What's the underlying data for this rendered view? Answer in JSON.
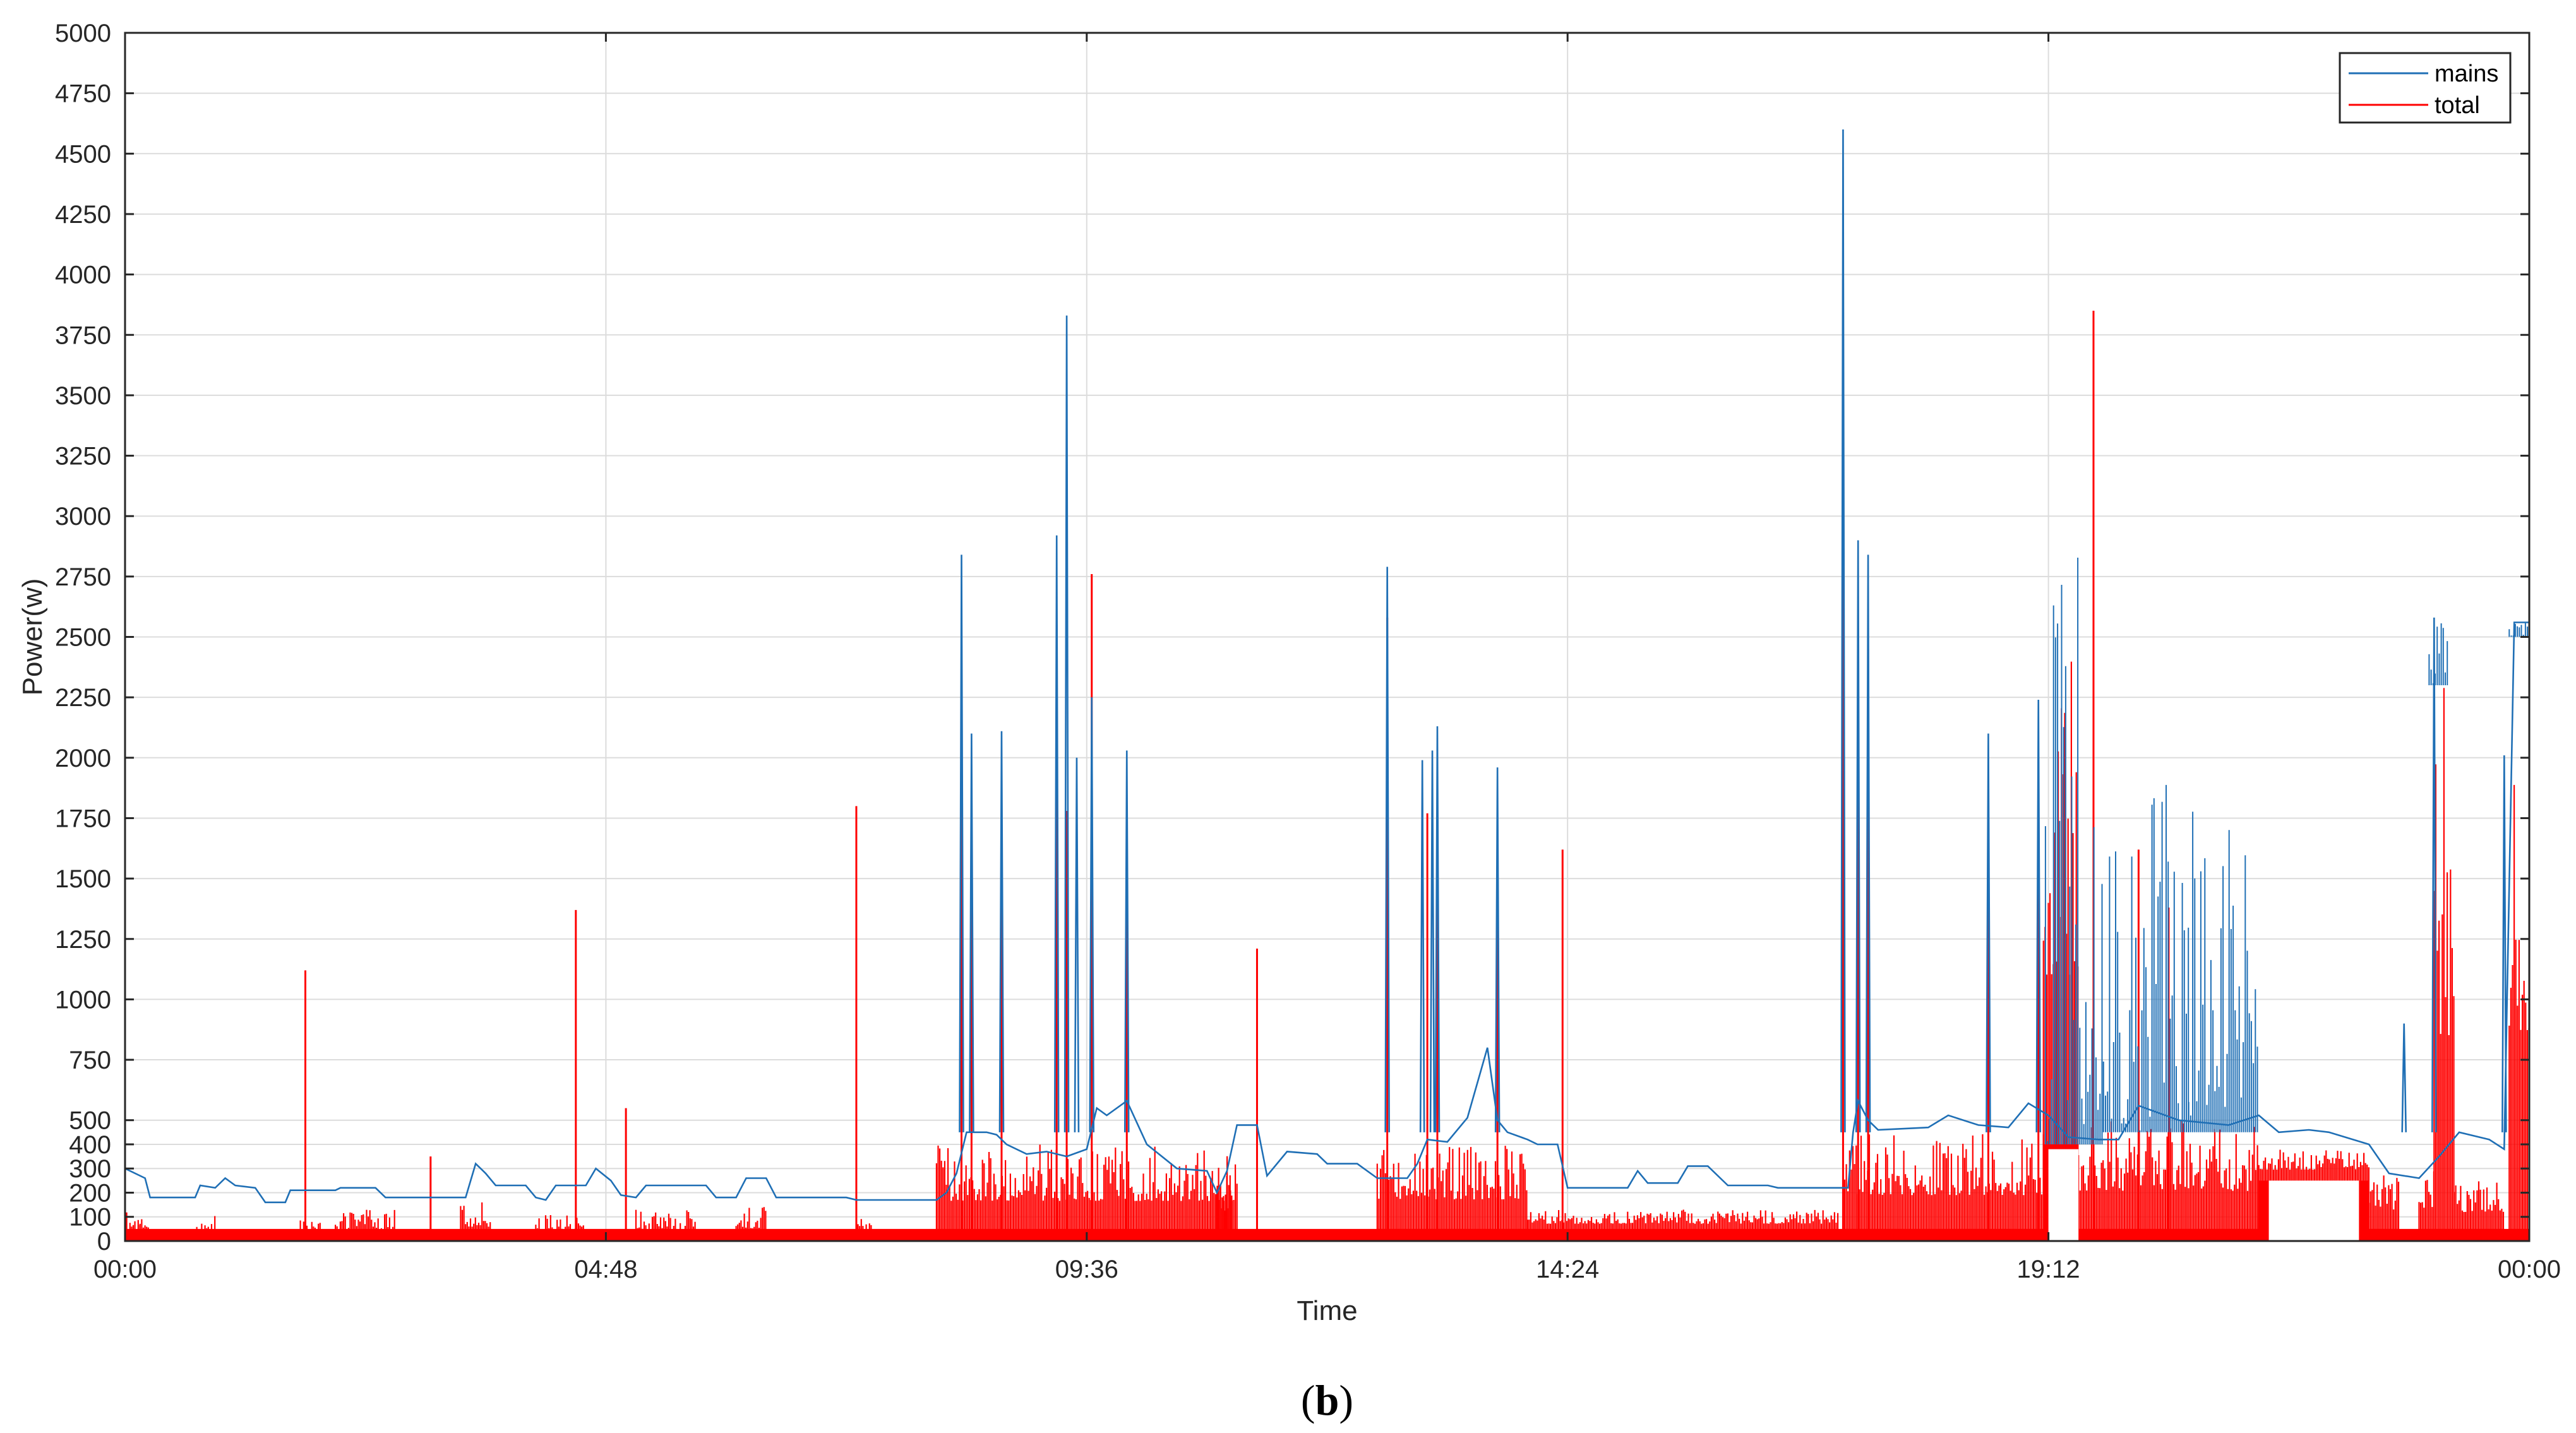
{
  "chart_data": {
    "type": "line",
    "xlabel": "Time",
    "ylabel": "Power(w)",
    "caption": {
      "open": "(",
      "letter": "b",
      "close": ")"
    },
    "x_tick_labels": [
      "00:00",
      "04:48",
      "09:36",
      "14:24",
      "19:12",
      "00:00"
    ],
    "x_tick_hours": [
      0,
      4.8,
      9.6,
      14.4,
      19.2,
      24
    ],
    "xlim_hours": [
      0,
      24
    ],
    "y_ticks": [
      0,
      100,
      200,
      300,
      400,
      500,
      750,
      1000,
      1250,
      1500,
      1750,
      2000,
      2250,
      2500,
      2750,
      3000,
      3250,
      3500,
      3750,
      4000,
      4250,
      4500,
      4750,
      5000
    ],
    "ylim": [
      0,
      5000
    ],
    "grid": true,
    "legend_position": "top-right",
    "colors": {
      "mains": "#1f6fb5",
      "total": "#ff0000",
      "grid": "#dcdcdc",
      "axis": "#262626"
    },
    "series": [
      {
        "name": "mains",
        "color": "#1f6fb5",
        "baseline": [
          [
            0.0,
            300
          ],
          [
            0.2,
            260
          ],
          [
            0.25,
            180
          ],
          [
            0.7,
            180
          ],
          [
            0.75,
            230
          ],
          [
            0.9,
            220
          ],
          [
            1.0,
            260
          ],
          [
            1.1,
            230
          ],
          [
            1.3,
            220
          ],
          [
            1.4,
            160
          ],
          [
            1.6,
            160
          ],
          [
            1.65,
            210
          ],
          [
            2.1,
            210
          ],
          [
            2.15,
            220
          ],
          [
            2.5,
            220
          ],
          [
            2.6,
            180
          ],
          [
            3.4,
            180
          ],
          [
            3.5,
            320
          ],
          [
            3.6,
            280
          ],
          [
            3.7,
            230
          ],
          [
            4.0,
            230
          ],
          [
            4.1,
            180
          ],
          [
            4.2,
            170
          ],
          [
            4.3,
            230
          ],
          [
            4.6,
            230
          ],
          [
            4.7,
            300
          ],
          [
            4.85,
            250
          ],
          [
            4.95,
            190
          ],
          [
            5.1,
            180
          ],
          [
            5.2,
            230
          ],
          [
            5.8,
            230
          ],
          [
            5.9,
            180
          ],
          [
            6.1,
            180
          ],
          [
            6.2,
            260
          ],
          [
            6.4,
            260
          ],
          [
            6.5,
            180
          ],
          [
            7.2,
            180
          ],
          [
            7.3,
            170
          ],
          [
            7.6,
            170
          ],
          [
            8.1,
            170
          ],
          [
            8.2,
            200
          ],
          [
            8.3,
            280
          ],
          [
            8.4,
            450
          ],
          [
            8.6,
            450
          ],
          [
            8.7,
            440
          ],
          [
            8.8,
            400
          ],
          [
            9.0,
            360
          ],
          [
            9.2,
            370
          ],
          [
            9.4,
            350
          ],
          [
            9.6,
            380
          ],
          [
            9.7,
            550
          ],
          [
            9.8,
            520
          ],
          [
            10.0,
            580
          ],
          [
            10.2,
            400
          ],
          [
            10.5,
            300
          ],
          [
            10.8,
            290
          ],
          [
            10.9,
            200
          ],
          [
            11.0,
            290
          ],
          [
            11.1,
            480
          ],
          [
            11.3,
            480
          ],
          [
            11.4,
            270
          ],
          [
            11.6,
            370
          ],
          [
            11.9,
            360
          ],
          [
            12.0,
            320
          ],
          [
            12.3,
            320
          ],
          [
            12.5,
            260
          ],
          [
            12.8,
            260
          ],
          [
            12.9,
            320
          ],
          [
            13.0,
            420
          ],
          [
            13.2,
            410
          ],
          [
            13.4,
            510
          ],
          [
            13.6,
            800
          ],
          [
            13.7,
            500
          ],
          [
            13.8,
            450
          ],
          [
            14.0,
            420
          ],
          [
            14.1,
            400
          ],
          [
            14.3,
            400
          ],
          [
            14.4,
            220
          ],
          [
            15.0,
            220
          ],
          [
            15.1,
            290
          ],
          [
            15.2,
            240
          ],
          [
            15.5,
            240
          ],
          [
            15.6,
            310
          ],
          [
            15.8,
            310
          ],
          [
            16.0,
            230
          ],
          [
            16.4,
            230
          ],
          [
            16.5,
            220
          ],
          [
            17.2,
            220
          ],
          [
            17.25,
            450
          ],
          [
            17.3,
            580
          ],
          [
            17.4,
            500
          ],
          [
            17.5,
            460
          ],
          [
            18.0,
            470
          ],
          [
            18.2,
            520
          ],
          [
            18.5,
            480
          ],
          [
            18.8,
            470
          ],
          [
            19.0,
            570
          ],
          [
            19.2,
            520
          ],
          [
            19.4,
            430
          ],
          [
            19.7,
            420
          ],
          [
            19.9,
            420
          ],
          [
            20.1,
            560
          ],
          [
            20.5,
            500
          ],
          [
            21.0,
            480
          ],
          [
            21.3,
            520
          ],
          [
            21.5,
            450
          ],
          [
            21.8,
            460
          ],
          [
            22.0,
            450
          ],
          [
            22.4,
            400
          ],
          [
            22.6,
            280
          ],
          [
            22.9,
            260
          ],
          [
            23.1,
            350
          ],
          [
            23.3,
            450
          ],
          [
            23.6,
            420
          ],
          [
            23.75,
            380
          ],
          [
            23.85,
            2560
          ],
          [
            24.0,
            2560
          ]
        ],
        "spikes": [
          [
            8.35,
            2840
          ],
          [
            8.45,
            2100
          ],
          [
            8.75,
            2110
          ],
          [
            9.3,
            2920
          ],
          [
            9.4,
            3830
          ],
          [
            9.5,
            2000
          ],
          [
            9.65,
            2250
          ],
          [
            10.0,
            2030
          ],
          [
            12.6,
            2790
          ],
          [
            12.95,
            1990
          ],
          [
            13.05,
            2030
          ],
          [
            13.1,
            2130
          ],
          [
            13.7,
            1960
          ],
          [
            17.15,
            4600
          ],
          [
            17.3,
            2900
          ],
          [
            17.4,
            2840
          ],
          [
            18.6,
            2100
          ],
          [
            19.1,
            2240
          ],
          [
            22.75,
            900
          ],
          [
            23.05,
            2580
          ],
          [
            23.75,
            2010
          ]
        ],
        "dense_blocks": [
          {
            "x": [
              19.15,
              19.75
            ],
            "low": 400,
            "high": 2880
          },
          {
            "x": [
              19.75,
              20.6
            ],
            "low": 450,
            "high": 2000
          },
          {
            "x": [
              20.6,
              21.3
            ],
            "low": 450,
            "high": 1800
          },
          {
            "x": [
              23.0,
              23.2
            ],
            "low": 2300,
            "high": 2580
          },
          {
            "x": [
              23.8,
              24.0
            ],
            "low": 2500,
            "high": 2570
          }
        ]
      },
      {
        "name": "total",
        "color": "#ff0000",
        "baseline_level": 50,
        "blocks": [
          {
            "x": [
              0.0,
              0.15
            ],
            "low": 0,
            "high": 130
          },
          {
            "x": [
              0.15,
              0.25
            ],
            "low": 0,
            "high": 100
          },
          {
            "x": [
              0.7,
              0.9
            ],
            "low": 0,
            "high": 120
          },
          {
            "x": [
              1.75,
              1.95
            ],
            "low": 0,
            "high": 120
          },
          {
            "x": [
              2.1,
              2.7
            ],
            "low": 0,
            "high": 130
          },
          {
            "x": [
              3.35,
              3.65
            ],
            "low": 0,
            "high": 170
          },
          {
            "x": [
              4.1,
              4.6
            ],
            "low": 0,
            "high": 110
          },
          {
            "x": [
              5.1,
              5.7
            ],
            "low": 0,
            "high": 130
          },
          {
            "x": [
              6.1,
              6.4
            ],
            "low": 0,
            "high": 150
          },
          {
            "x": [
              7.3,
              7.45
            ],
            "low": 0,
            "high": 120
          },
          {
            "x": [
              8.1,
              11.1
            ],
            "low": 40,
            "high": 400
          },
          {
            "x": [
              10.9,
              11.05
            ],
            "low": 0,
            "high": 330
          },
          {
            "x": [
              12.5,
              14.0
            ],
            "low": 50,
            "high": 400
          },
          {
            "x": [
              14.0,
              17.1
            ],
            "low": 40,
            "high": 130
          },
          {
            "x": [
              17.15,
              19.15
            ],
            "low": 50,
            "high": 450
          },
          {
            "x": [
              19.15,
              19.5
            ],
            "low": 400,
            "high": 2400
          },
          {
            "x": [
              19.5,
              21.3
            ],
            "low": 50,
            "high": 500
          },
          {
            "x": [
              21.3,
              22.4
            ],
            "low": 250,
            "high": 380
          },
          {
            "x": [
              22.4,
              22.7
            ],
            "low": 50,
            "high": 280
          },
          {
            "x": [
              22.9,
              23.05
            ],
            "low": 50,
            "high": 300
          },
          {
            "x": [
              23.05,
              23.25
            ],
            "low": 50,
            "high": 2330
          },
          {
            "x": [
              23.25,
              23.75
            ],
            "low": 50,
            "high": 250
          },
          {
            "x": [
              23.8,
              24.0
            ],
            "low": 50,
            "high": 2400
          }
        ],
        "spikes": [
          [
            1.8,
            1120
          ],
          [
            3.05,
            350
          ],
          [
            4.5,
            1370
          ],
          [
            5.0,
            550
          ],
          [
            7.3,
            1800
          ],
          [
            8.35,
            2550
          ],
          [
            8.45,
            1780
          ],
          [
            8.75,
            1640
          ],
          [
            9.3,
            2550
          ],
          [
            9.4,
            1780
          ],
          [
            9.65,
            2760
          ],
          [
            10.0,
            1640
          ],
          [
            11.3,
            1210
          ],
          [
            12.6,
            2580
          ],
          [
            13.0,
            1770
          ],
          [
            13.1,
            1690
          ],
          [
            13.7,
            1640
          ],
          [
            14.35,
            1620
          ],
          [
            17.15,
            3980
          ],
          [
            17.3,
            2470
          ],
          [
            17.4,
            2450
          ],
          [
            18.6,
            1580
          ],
          [
            19.1,
            1760
          ],
          [
            19.65,
            3850
          ],
          [
            20.1,
            1620
          ],
          [
            20.4,
            1380
          ]
        ],
        "gaps": [
          {
            "x": [
              19.2,
              19.5
            ],
            "low": 0,
            "high": 380
          },
          {
            "x": [
              21.4,
              22.3
            ],
            "low": 0,
            "high": 250
          }
        ]
      }
    ]
  }
}
